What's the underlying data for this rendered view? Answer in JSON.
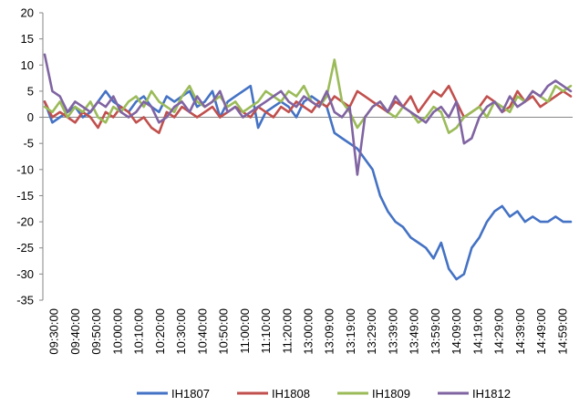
{
  "chart_data": {
    "type": "line",
    "title": "",
    "xlabel": "",
    "ylabel": "",
    "ylim": [
      -35,
      20
    ],
    "yticks": [
      20,
      15,
      10,
      5,
      0,
      -5,
      -10,
      -15,
      -20,
      -25,
      -30,
      -35
    ],
    "grid": false,
    "legend_position": "bottom",
    "x_tick_labels": [
      "09:30:00",
      "09:40:00",
      "09:50:00",
      "10:00:00",
      "10:10:00",
      "10:20:00",
      "10:30:00",
      "10:40:00",
      "10:50:00",
      "11:00:00",
      "11:10:00",
      "11:20:00",
      "13:00:00",
      "13:09:00",
      "13:19:00",
      "13:29:00",
      "13:39:00",
      "13:49:00",
      "13:59:00",
      "14:09:00",
      "14:19:00",
      "14:29:00",
      "14:39:00",
      "14:49:00",
      "14:59:00"
    ],
    "series": [
      {
        "name": "IH1807",
        "color": "#4472C4",
        "values": [
          3,
          -1,
          0,
          1,
          2,
          0,
          1,
          3,
          5,
          3,
          2,
          1,
          3,
          4,
          2,
          1,
          4,
          3,
          4,
          5,
          2,
          3,
          5,
          0,
          3,
          4,
          5,
          6,
          -2,
          1,
          2,
          3,
          2,
          0,
          3,
          4,
          3,
          2,
          -3,
          -4,
          -5,
          -6,
          -8,
          -10,
          -15,
          -18,
          -20,
          -21,
          -23,
          -24,
          -25,
          -27,
          -24,
          -29,
          -31,
          -30,
          -25,
          -23,
          -20,
          -18,
          -17,
          -19,
          -18,
          -20,
          -19,
          -20,
          -20,
          -19,
          -20,
          -20
        ]
      },
      {
        "name": "IH1808",
        "color": "#C0504D",
        "values": [
          3,
          0,
          1,
          0,
          -1,
          1,
          0,
          -2,
          1,
          0,
          2,
          1,
          -1,
          0,
          -2,
          -3,
          1,
          0,
          2,
          1,
          0,
          1,
          2,
          0,
          1,
          2,
          1,
          0,
          2,
          1,
          0,
          2,
          1,
          3,
          2,
          1,
          3,
          2,
          4,
          3,
          2,
          5,
          4,
          3,
          2,
          1,
          3,
          2,
          4,
          1,
          3,
          5,
          4,
          6,
          3,
          0,
          1,
          2,
          4,
          3,
          1,
          2,
          5,
          3,
          4,
          2,
          3,
          4,
          5,
          4
        ]
      },
      {
        "name": "IH1809",
        "color": "#9BBB59",
        "values": [
          2,
          1,
          3,
          0,
          2,
          1,
          3,
          0,
          -1,
          2,
          1,
          3,
          4,
          2,
          5,
          3,
          2,
          1,
          4,
          6,
          3,
          2,
          3,
          4,
          2,
          3,
          1,
          2,
          3,
          5,
          4,
          3,
          5,
          4,
          6,
          3,
          2,
          4,
          11,
          3,
          1,
          -2,
          0,
          2,
          3,
          1,
          0,
          2,
          1,
          -1,
          0,
          2,
          1,
          -3,
          -2,
          0,
          1,
          2,
          0,
          3,
          2,
          1,
          4,
          3,
          5,
          4,
          3,
          6,
          5,
          6
        ]
      },
      {
        "name": "IH1812",
        "color": "#8064A2",
        "values": [
          12,
          5,
          4,
          1,
          3,
          2,
          1,
          3,
          2,
          4,
          1,
          0,
          1,
          3,
          2,
          -1,
          0,
          2,
          3,
          1,
          4,
          2,
          3,
          5,
          1,
          2,
          0,
          1,
          2,
          3,
          4,
          5,
          3,
          2,
          4,
          3,
          2,
          5,
          1,
          0,
          2,
          -11,
          0,
          2,
          3,
          1,
          4,
          2,
          1,
          0,
          -1,
          1,
          2,
          0,
          3,
          -5,
          -4,
          0,
          2,
          3,
          1,
          4,
          2,
          3,
          5,
          4,
          6,
          7,
          6,
          5
        ]
      }
    ]
  }
}
